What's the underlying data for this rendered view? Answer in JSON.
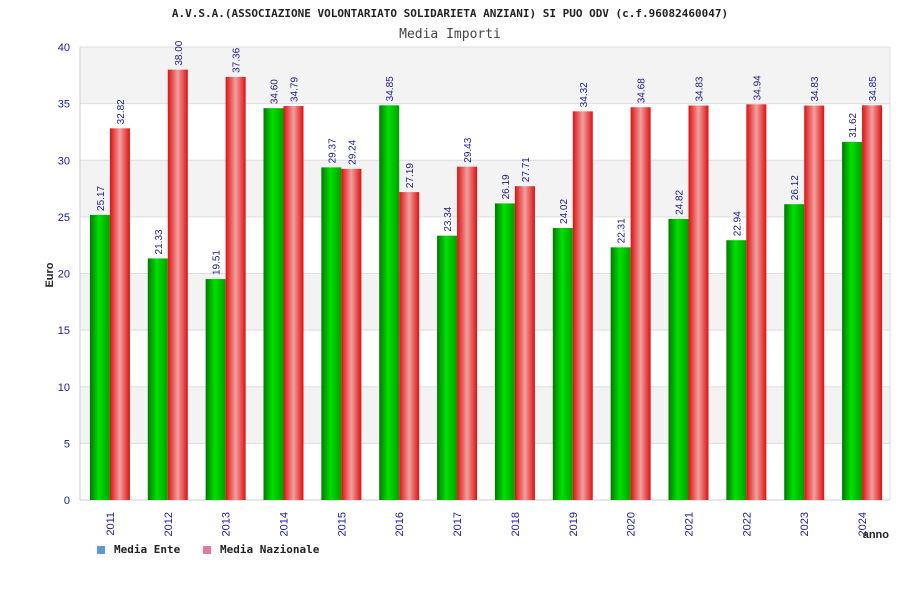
{
  "chart_data": {
    "type": "bar",
    "title": "A.V.S.A.(ASSOCIAZIONE VOLONTARIATO SOLIDARIETA ANZIANI) SI PUO ODV (c.f.96082460047)",
    "subtitle": "Media Importi",
    "xlabel": "anno",
    "ylabel": "Euro",
    "ylim": [
      0,
      40
    ],
    "yticks": [
      0,
      5,
      10,
      15,
      20,
      25,
      30,
      35,
      40
    ],
    "grid": true,
    "legend_position": "bottom-left",
    "categories": [
      "2011",
      "2012",
      "2013",
      "2014",
      "2015",
      "2016",
      "2017",
      "2018",
      "2019",
      "2020",
      "2021",
      "2022",
      "2023",
      "2024"
    ],
    "series": [
      {
        "name": "Media Ente",
        "legend_color": "#5b9bd5",
        "bar_color": "#00bb00",
        "values": [
          25.17,
          21.33,
          19.51,
          34.6,
          29.37,
          34.85,
          23.34,
          26.19,
          24.02,
          22.31,
          24.82,
          22.94,
          26.12,
          31.62
        ],
        "labels": [
          "25.17",
          "21.33",
          "19.51",
          "34.60",
          "29.37",
          "34.85",
          "23.34",
          "26.19",
          "24.02",
          "22.31",
          "24.82",
          "22.94",
          "26.12",
          "31.62"
        ]
      },
      {
        "name": "Media Nazionale",
        "legend_color": "#e07aa0",
        "bar_color": "#ee1111",
        "values": [
          32.82,
          38.0,
          37.36,
          34.79,
          29.24,
          27.19,
          29.43,
          27.71,
          34.32,
          34.68,
          34.83,
          34.94,
          34.83,
          34.85
        ],
        "labels": [
          "32.82",
          "38.00",
          "37.36",
          "34.79",
          "29.24",
          "27.19",
          "29.43",
          "27.71",
          "34.32",
          "34.68",
          "34.83",
          "34.94",
          "34.83",
          "34.85"
        ]
      }
    ]
  }
}
